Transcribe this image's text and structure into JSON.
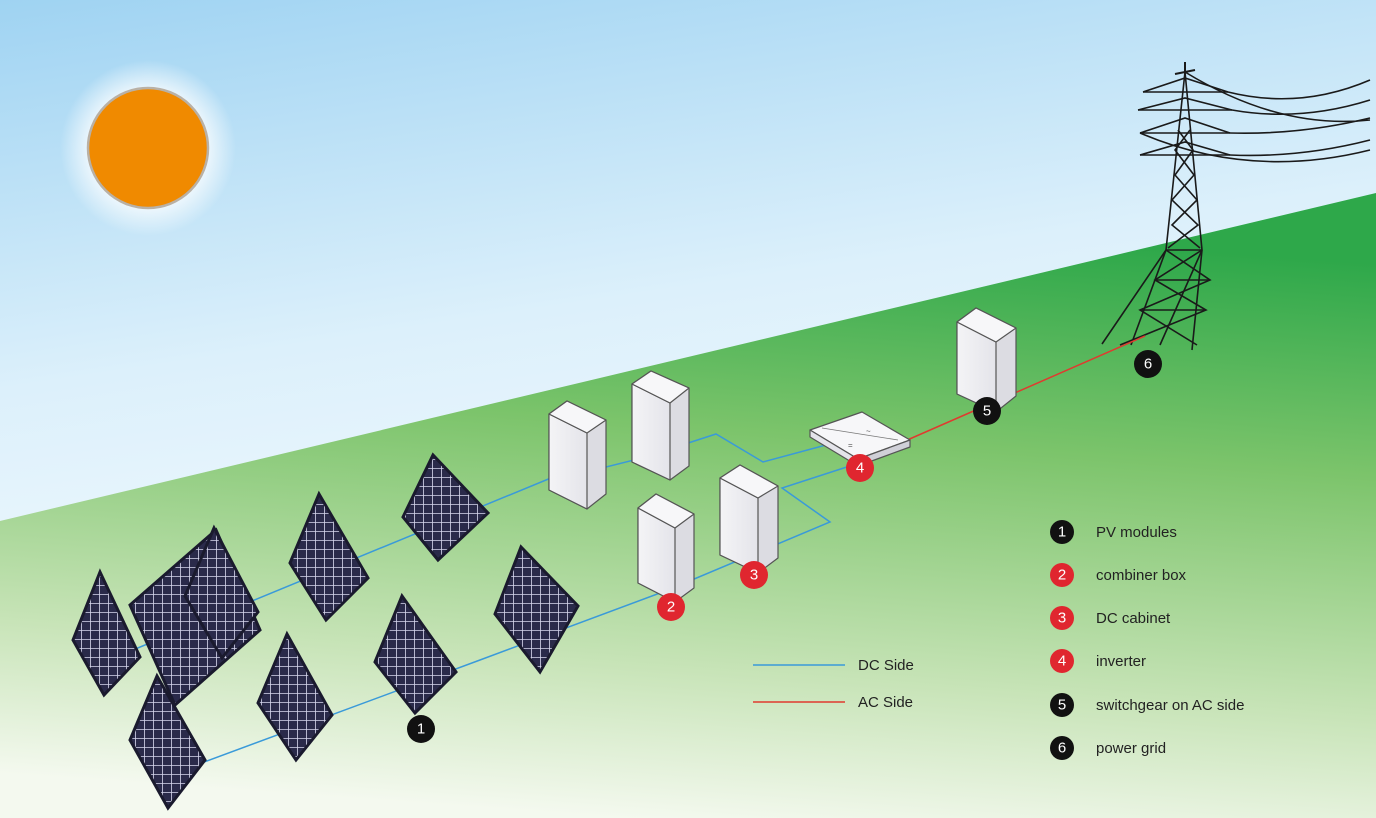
{
  "line_legend": {
    "dc": {
      "label": "DC Side",
      "color": "#3a9ad9"
    },
    "ac": {
      "label": "AC Side",
      "color": "#e03a2f"
    }
  },
  "components": [
    {
      "number": "1",
      "label": "PV modules",
      "color": "#111111"
    },
    {
      "number": "2",
      "label": "combiner box",
      "color": "#e0262f"
    },
    {
      "number": "3",
      "label": "DC cabinet",
      "color": "#e0262f"
    },
    {
      "number": "4",
      "label": "inverter",
      "color": "#e0262f"
    },
    {
      "number": "5",
      "label": "switchgear on AC side",
      "color": "#111111"
    },
    {
      "number": "6",
      "label": "power grid",
      "color": "#111111"
    }
  ],
  "colors": {
    "sun": "#f08a00",
    "sky_top": "#9fd3f2",
    "grass_far": "#2ea84a",
    "grass_near": "#e6f2dc",
    "panel": "#2a2a4a",
    "cabinet": "#eeeef0"
  }
}
